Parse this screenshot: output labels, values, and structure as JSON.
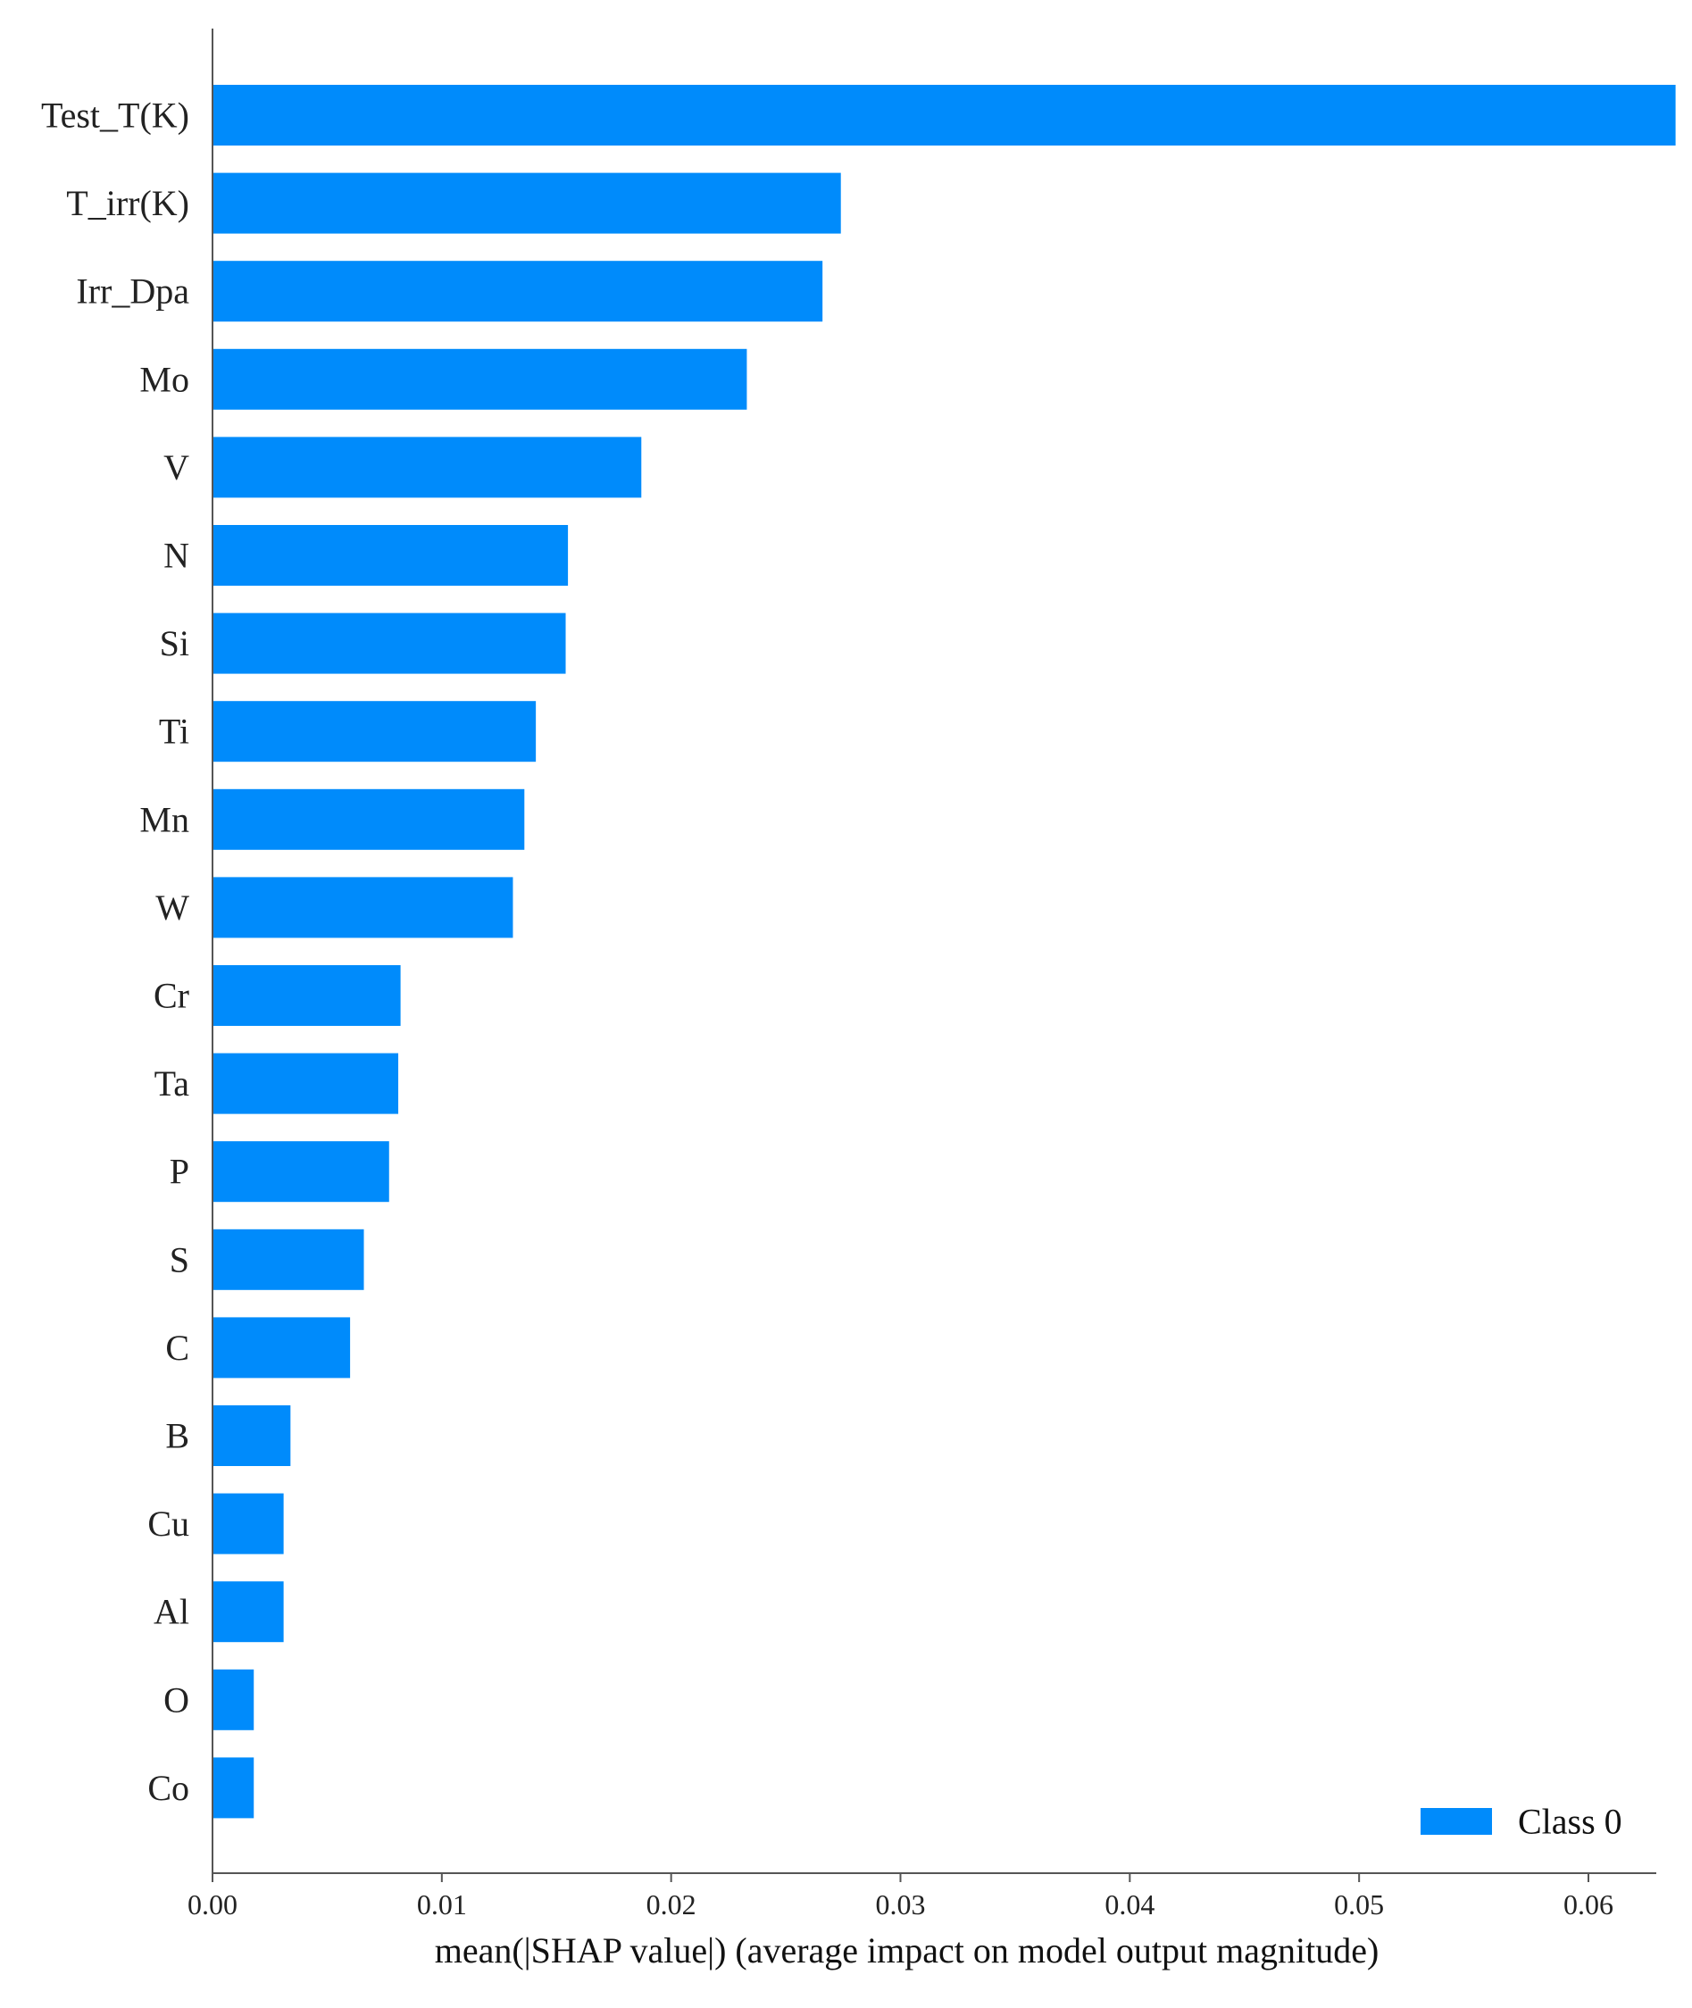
{
  "chart_data": {
    "type": "bar",
    "orientation": "horizontal",
    "categories": [
      "Test_T(K)",
      "T_irr(K)",
      "Irr_Dpa",
      "Mo",
      "V",
      "N",
      "Si",
      "Ti",
      "Mn",
      "W",
      "Cr",
      "Ta",
      "P",
      "S",
      "C",
      "B",
      "Cu",
      "Al",
      "O",
      "Co"
    ],
    "series": [
      {
        "name": "Class 0",
        "color": "#008bfb",
        "values": [
          0.0638,
          0.0274,
          0.0266,
          0.0233,
          0.0187,
          0.0155,
          0.0154,
          0.0141,
          0.0136,
          0.0131,
          0.0082,
          0.0081,
          0.0077,
          0.0066,
          0.006,
          0.0034,
          0.0031,
          0.0031,
          0.0018,
          0.0018
        ]
      }
    ],
    "xlabel": "mean(|SHAP value|) (average impact on model output magnitude)",
    "xlim": [
      0,
      0.067
    ],
    "xticks": [
      0.0,
      0.01,
      0.02,
      0.03,
      0.04,
      0.05,
      0.06
    ],
    "xtick_labels": [
      "0.00",
      "0.01",
      "0.02",
      "0.03",
      "0.04",
      "0.05",
      "0.06"
    ],
    "grid": false,
    "legend": {
      "position": "bottom-right",
      "entries": [
        "Class 0"
      ]
    }
  },
  "colors": {
    "bar": "#008bfb",
    "axis": "#555555",
    "text": "#222222"
  }
}
